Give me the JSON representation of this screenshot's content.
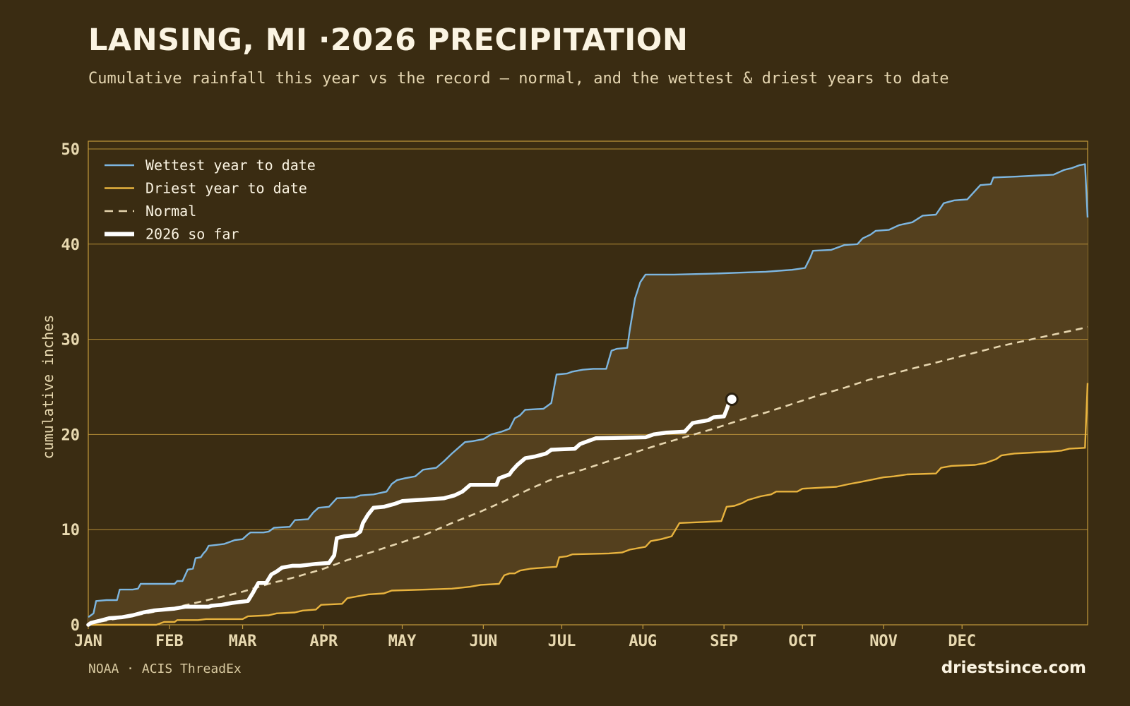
{
  "header": {
    "title": "LANSING, MI ·2026 PRECIPITATION",
    "subtitle": "Cumulative rainfall this year vs the record — normal, and the wettest & driest years to date"
  },
  "footer": {
    "source": "NOAA · ACIS ThreadEx",
    "brand": "driestsince.com"
  },
  "colors": {
    "background": "#3a2c12",
    "band_fill": "#54401e",
    "grid": "#c49a3c",
    "wettest": "#7db6e0",
    "driest": "#e8b33e",
    "normal": "#e6d5ae",
    "current": "#ffffff",
    "tick_text": "#e8d9b0"
  },
  "chart_data": {
    "type": "line",
    "ylabel": "cumulative inches",
    "ylim": [
      0,
      50
    ],
    "xlim": [
      1,
      365
    ],
    "yticks": [
      0,
      10,
      20,
      30,
      40,
      50
    ],
    "month_labels": [
      "JAN",
      "FEB",
      "MAR",
      "APR",
      "MAY",
      "JUN",
      "JUL",
      "AUG",
      "SEP",
      "OCT",
      "NOV",
      "DEC"
    ],
    "month_start_days": [
      1,
      32,
      60,
      91,
      121,
      152,
      182,
      213,
      244,
      274,
      305,
      335
    ],
    "grid": true,
    "legend_position": "top-left",
    "legend": [
      {
        "key": "wettest",
        "label": "Wettest year to date"
      },
      {
        "key": "driest",
        "label": "Driest year to date"
      },
      {
        "key": "normal",
        "label": "Normal"
      },
      {
        "key": "current",
        "label": "2026 so far"
      }
    ],
    "series": {
      "wettest": [
        [
          1,
          0.8
        ],
        [
          3,
          1.2
        ],
        [
          4,
          2.5
        ],
        [
          8,
          2.6
        ],
        [
          12,
          2.6
        ],
        [
          13,
          3.7
        ],
        [
          18,
          3.7
        ],
        [
          20,
          3.8
        ],
        [
          21,
          4.3
        ],
        [
          30,
          4.3
        ],
        [
          34,
          4.3
        ],
        [
          35,
          4.6
        ],
        [
          37,
          4.6
        ],
        [
          38,
          5.2
        ],
        [
          39,
          5.8
        ],
        [
          41,
          5.9
        ],
        [
          42,
          7.0
        ],
        [
          44,
          7.1
        ],
        [
          45,
          7.5
        ],
        [
          46,
          7.8
        ],
        [
          47,
          8.3
        ],
        [
          50,
          8.4
        ],
        [
          53,
          8.5
        ],
        [
          55,
          8.7
        ],
        [
          57,
          8.9
        ],
        [
          60,
          9.0
        ],
        [
          62,
          9.5
        ],
        [
          63,
          9.7
        ],
        [
          68,
          9.7
        ],
        [
          70,
          9.8
        ],
        [
          72,
          10.2
        ],
        [
          78,
          10.3
        ],
        [
          80,
          11.0
        ],
        [
          85,
          11.1
        ],
        [
          87,
          11.8
        ],
        [
          89,
          12.3
        ],
        [
          93,
          12.4
        ],
        [
          96,
          13.3
        ],
        [
          103,
          13.4
        ],
        [
          105,
          13.6
        ],
        [
          110,
          13.7
        ],
        [
          115,
          14.0
        ],
        [
          117,
          14.8
        ],
        [
          119,
          15.2
        ],
        [
          122,
          15.4
        ],
        [
          126,
          15.6
        ],
        [
          129,
          16.3
        ],
        [
          134,
          16.5
        ],
        [
          137,
          17.2
        ],
        [
          140,
          18.0
        ],
        [
          145,
          19.2
        ],
        [
          148,
          19.3
        ],
        [
          152,
          19.5
        ],
        [
          155,
          20.0
        ],
        [
          159,
          20.3
        ],
        [
          162,
          20.6
        ],
        [
          164,
          21.7
        ],
        [
          166,
          22.0
        ],
        [
          168,
          22.6
        ],
        [
          175,
          22.7
        ],
        [
          178,
          23.3
        ],
        [
          180,
          26.3
        ],
        [
          184,
          26.4
        ],
        [
          186,
          26.6
        ],
        [
          190,
          26.8
        ],
        [
          194,
          26.9
        ],
        [
          199,
          26.9
        ],
        [
          201,
          28.8
        ],
        [
          203,
          29.0
        ],
        [
          207,
          29.1
        ],
        [
          208,
          31.0
        ],
        [
          210,
          34.3
        ],
        [
          212,
          36.0
        ],
        [
          214,
          36.8
        ],
        [
          225,
          36.8
        ],
        [
          240,
          36.9
        ],
        [
          250,
          37.0
        ],
        [
          260,
          37.1
        ],
        [
          265,
          37.2
        ],
        [
          270,
          37.3
        ],
        [
          275,
          37.5
        ],
        [
          277,
          38.6
        ],
        [
          278,
          39.3
        ],
        [
          285,
          39.4
        ],
        [
          290,
          39.9
        ],
        [
          295,
          40.0
        ],
        [
          297,
          40.6
        ],
        [
          300,
          41.0
        ],
        [
          302,
          41.4
        ],
        [
          307,
          41.5
        ],
        [
          311,
          42.0
        ],
        [
          316,
          42.3
        ],
        [
          320,
          43.0
        ],
        [
          325,
          43.1
        ],
        [
          328,
          44.3
        ],
        [
          332,
          44.6
        ],
        [
          337,
          44.7
        ],
        [
          342,
          46.2
        ],
        [
          346,
          46.3
        ],
        [
          347,
          47.0
        ],
        [
          356,
          47.1
        ],
        [
          363,
          47.2
        ],
        [
          370,
          47.3
        ],
        [
          374,
          47.8
        ],
        [
          377,
          48.0
        ],
        [
          380,
          48.3
        ],
        [
          382,
          48.4
        ],
        [
          383,
          42.8
        ]
      ],
      "driest": [
        [
          1,
          0.0
        ],
        [
          27,
          0.0
        ],
        [
          30,
          0.3
        ],
        [
          34,
          0.3
        ],
        [
          35,
          0.5
        ],
        [
          43,
          0.5
        ],
        [
          46,
          0.6
        ],
        [
          60,
          0.6
        ],
        [
          62,
          0.9
        ],
        [
          70,
          1.0
        ],
        [
          73,
          1.2
        ],
        [
          80,
          1.3
        ],
        [
          83,
          1.5
        ],
        [
          88,
          1.6
        ],
        [
          90,
          2.1
        ],
        [
          98,
          2.2
        ],
        [
          100,
          2.8
        ],
        [
          104,
          3.0
        ],
        [
          108,
          3.2
        ],
        [
          114,
          3.3
        ],
        [
          117,
          3.6
        ],
        [
          130,
          3.7
        ],
        [
          140,
          3.8
        ],
        [
          147,
          4.0
        ],
        [
          151,
          4.2
        ],
        [
          158,
          4.3
        ],
        [
          160,
          5.2
        ],
        [
          162,
          5.4
        ],
        [
          164,
          5.4
        ],
        [
          166,
          5.7
        ],
        [
          170,
          5.9
        ],
        [
          175,
          6.0
        ],
        [
          180,
          6.1
        ],
        [
          181,
          7.1
        ],
        [
          184,
          7.2
        ],
        [
          186,
          7.4
        ],
        [
          200,
          7.5
        ],
        [
          205,
          7.6
        ],
        [
          208,
          7.9
        ],
        [
          214,
          8.2
        ],
        [
          216,
          8.8
        ],
        [
          220,
          9.0
        ],
        [
          224,
          9.3
        ],
        [
          227,
          10.7
        ],
        [
          236,
          10.8
        ],
        [
          243,
          10.9
        ],
        [
          245,
          12.4
        ],
        [
          248,
          12.5
        ],
        [
          251,
          12.8
        ],
        [
          253,
          13.1
        ],
        [
          258,
          13.5
        ],
        [
          262,
          13.7
        ],
        [
          264,
          14.0
        ],
        [
          272,
          14.0
        ],
        [
          274,
          14.3
        ],
        [
          287,
          14.5
        ],
        [
          292,
          14.8
        ],
        [
          296,
          15.0
        ],
        [
          305,
          15.5
        ],
        [
          309,
          15.6
        ],
        [
          314,
          15.8
        ],
        [
          325,
          15.9
        ],
        [
          327,
          16.5
        ],
        [
          331,
          16.7
        ],
        [
          340,
          16.8
        ],
        [
          344,
          17.0
        ],
        [
          348,
          17.4
        ],
        [
          350,
          17.8
        ],
        [
          355,
          18.0
        ],
        [
          362,
          18.1
        ],
        [
          369,
          18.2
        ],
        [
          373,
          18.3
        ],
        [
          376,
          18.5
        ],
        [
          382,
          18.6
        ],
        [
          383,
          25.4
        ]
      ],
      "normal": [
        [
          1,
          0.1
        ],
        [
          15,
          0.8
        ],
        [
          31,
          1.6
        ],
        [
          45,
          2.5
        ],
        [
          59,
          3.4
        ],
        [
          70,
          4.3
        ],
        [
          80,
          5.0
        ],
        [
          90,
          5.8
        ],
        [
          100,
          6.8
        ],
        [
          110,
          7.7
        ],
        [
          120,
          8.6
        ],
        [
          130,
          9.5
        ],
        [
          140,
          10.7
        ],
        [
          151,
          11.9
        ],
        [
          160,
          13.0
        ],
        [
          170,
          14.3
        ],
        [
          180,
          15.5
        ],
        [
          190,
          16.3
        ],
        [
          200,
          17.2
        ],
        [
          212,
          18.3
        ],
        [
          220,
          19.0
        ],
        [
          230,
          19.8
        ],
        [
          240,
          20.6
        ],
        [
          250,
          21.5
        ],
        [
          260,
          22.3
        ],
        [
          270,
          23.2
        ],
        [
          280,
          24.1
        ],
        [
          290,
          24.9
        ],
        [
          300,
          25.8
        ],
        [
          310,
          26.5
        ],
        [
          320,
          27.2
        ],
        [
          330,
          27.9
        ],
        [
          340,
          28.6
        ],
        [
          350,
          29.3
        ],
        [
          360,
          29.9
        ],
        [
          370,
          30.5
        ],
        [
          380,
          31.1
        ],
        [
          383,
          31.3
        ]
      ],
      "current": [
        [
          1,
          0.0
        ],
        [
          2,
          0.2
        ],
        [
          5,
          0.4
        ],
        [
          9,
          0.7
        ],
        [
          14,
          0.8
        ],
        [
          18,
          1.0
        ],
        [
          22,
          1.3
        ],
        [
          26,
          1.5
        ],
        [
          30,
          1.6
        ],
        [
          34,
          1.7
        ],
        [
          38,
          1.9
        ],
        [
          47,
          1.9
        ],
        [
          48,
          2.0
        ],
        [
          52,
          2.1
        ],
        [
          56,
          2.3
        ],
        [
          62,
          2.5
        ],
        [
          64,
          3.4
        ],
        [
          66,
          4.4
        ],
        [
          69,
          4.4
        ],
        [
          71,
          5.3
        ],
        [
          73,
          5.6
        ],
        [
          75,
          6.0
        ],
        [
          79,
          6.2
        ],
        [
          82,
          6.2
        ],
        [
          88,
          6.4
        ],
        [
          93,
          6.5
        ],
        [
          95,
          7.3
        ],
        [
          96,
          9.1
        ],
        [
          99,
          9.3
        ],
        [
          103,
          9.4
        ],
        [
          105,
          9.8
        ],
        [
          106,
          10.7
        ],
        [
          108,
          11.6
        ],
        [
          110,
          12.3
        ],
        [
          114,
          12.4
        ],
        [
          118,
          12.7
        ],
        [
          121,
          13.0
        ],
        [
          126,
          13.1
        ],
        [
          132,
          13.2
        ],
        [
          137,
          13.3
        ],
        [
          141,
          13.6
        ],
        [
          144,
          14.0
        ],
        [
          147,
          14.7
        ],
        [
          157,
          14.7
        ],
        [
          158,
          15.4
        ],
        [
          160,
          15.6
        ],
        [
          162,
          15.8
        ],
        [
          163,
          16.2
        ],
        [
          165,
          16.8
        ],
        [
          168,
          17.5
        ],
        [
          172,
          17.7
        ],
        [
          176,
          18.0
        ],
        [
          178,
          18.4
        ],
        [
          187,
          18.5
        ],
        [
          189,
          19.0
        ],
        [
          192,
          19.3
        ],
        [
          195,
          19.6
        ],
        [
          214,
          19.7
        ],
        [
          217,
          20.0
        ],
        [
          222,
          20.2
        ],
        [
          229,
          20.3
        ],
        [
          232,
          21.2
        ],
        [
          238,
          21.5
        ],
        [
          240,
          21.8
        ],
        [
          244,
          21.9
        ],
        [
          245,
          22.6
        ],
        [
          246,
          23.4
        ],
        [
          247,
          23.7
        ]
      ]
    },
    "current_endpoint": {
      "x": 247,
      "y": 23.7
    }
  }
}
